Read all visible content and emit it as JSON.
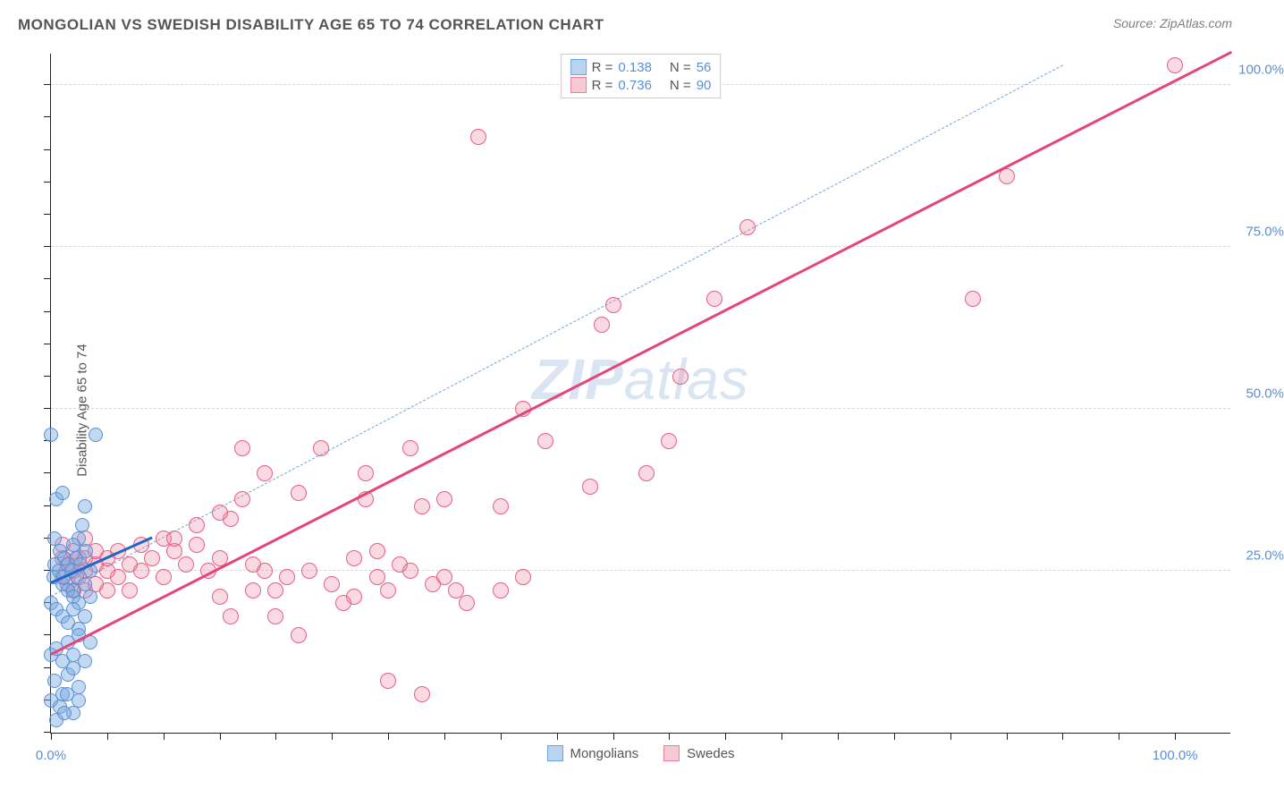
{
  "header": {
    "title": "MONGOLIAN VS SWEDISH DISABILITY AGE 65 TO 74 CORRELATION CHART",
    "source": "Source: ZipAtlas.com"
  },
  "axes": {
    "y_label": "Disability Age 65 to 74",
    "x_min": 0,
    "x_max": 105,
    "y_min": 0,
    "y_max": 105,
    "x_ticks": [
      0,
      5,
      10,
      15,
      20,
      25,
      30,
      35,
      40,
      45,
      50,
      55,
      60,
      65,
      70,
      75,
      80,
      85,
      90,
      95,
      100
    ],
    "y_ticks": [
      0,
      5,
      10,
      15,
      20,
      25,
      30,
      35,
      40,
      45,
      50,
      55,
      60,
      65,
      70,
      75,
      80,
      85,
      90,
      95,
      100
    ],
    "x_tick_labels": [
      {
        "v": 0,
        "t": "0.0%"
      },
      {
        "v": 100,
        "t": "100.0%"
      }
    ],
    "y_tick_labels": [
      {
        "v": 25,
        "t": "25.0%"
      },
      {
        "v": 50,
        "t": "50.0%"
      },
      {
        "v": 75,
        "t": "75.0%"
      },
      {
        "v": 100,
        "t": "100.0%"
      }
    ],
    "grid_y": [
      25,
      50,
      75,
      100
    ],
    "axis_label_color": "#5a8fd6",
    "grid_color": "#d8d8d8"
  },
  "watermark": {
    "prefix": "ZIP",
    "suffix": "atlas"
  },
  "legend_top": {
    "rows": [
      {
        "swatch_fill": "#b9d4f0",
        "swatch_border": "#6fa3dd",
        "r_label": "R =",
        "r_val": "0.138",
        "n_label": "N =",
        "n_val": "56"
      },
      {
        "swatch_fill": "#f6c9d4",
        "swatch_border": "#e87ea0",
        "r_label": "R =",
        "r_val": "0.736",
        "n_label": "N =",
        "n_val": "90"
      }
    ]
  },
  "legend_bottom": {
    "items": [
      {
        "swatch_fill": "#b9d4f0",
        "swatch_border": "#6fa3dd",
        "label": "Mongolians"
      },
      {
        "swatch_fill": "#f6c9d4",
        "swatch_border": "#e87ea0",
        "label": "Swedes"
      }
    ]
  },
  "series": {
    "mongolians": {
      "marker_radius": 8,
      "fill": "rgba(120,170,225,0.45)",
      "stroke": "#5a8fd6",
      "stroke_width": 1,
      "points": [
        [
          0,
          46
        ],
        [
          4,
          46
        ],
        [
          0.5,
          36
        ],
        [
          1,
          37
        ],
        [
          2,
          22
        ],
        [
          2.5,
          30
        ],
        [
          3,
          35
        ],
        [
          3.5,
          25
        ],
        [
          0.3,
          30
        ],
        [
          0.8,
          28
        ],
        [
          1.2,
          27
        ],
        [
          1.5,
          26
        ],
        [
          2,
          29
        ],
        [
          2.3,
          24
        ],
        [
          2.8,
          32
        ],
        [
          0.2,
          24
        ],
        [
          1,
          23
        ],
        [
          1.5,
          22
        ],
        [
          2,
          21
        ],
        [
          2.5,
          20
        ],
        [
          3,
          23
        ],
        [
          3.5,
          21
        ],
        [
          0,
          20
        ],
        [
          0.5,
          19
        ],
        [
          1,
          18
        ],
        [
          1.5,
          17
        ],
        [
          2,
          19
        ],
        [
          2.5,
          16
        ],
        [
          3,
          18
        ],
        [
          0.3,
          26
        ],
        [
          0.7,
          25
        ],
        [
          1.1,
          24
        ],
        [
          1.8,
          25
        ],
        [
          2.2,
          27
        ],
        [
          2.6,
          26
        ],
        [
          3.1,
          28
        ],
        [
          0,
          12
        ],
        [
          0.5,
          13
        ],
        [
          1,
          11
        ],
        [
          1.5,
          14
        ],
        [
          2,
          12
        ],
        [
          2.5,
          15
        ],
        [
          0.3,
          8
        ],
        [
          1,
          6
        ],
        [
          1.5,
          9
        ],
        [
          2,
          10
        ],
        [
          2.5,
          7
        ],
        [
          0,
          5
        ],
        [
          0.8,
          4
        ],
        [
          1.4,
          6
        ],
        [
          2,
          3
        ],
        [
          0.5,
          2
        ],
        [
          1.2,
          3
        ],
        [
          2.5,
          5
        ],
        [
          3,
          11
        ],
        [
          3.5,
          14
        ]
      ],
      "trend": {
        "x1": 0,
        "y1": 23,
        "x2": 9,
        "y2": 30,
        "color": "#2166c9",
        "width": 3
      }
    },
    "swedes": {
      "marker_radius": 9,
      "fill": "rgba(235,130,160,0.30)",
      "stroke": "#e75e88",
      "stroke_width": 1,
      "points": [
        [
          100,
          103
        ],
        [
          85,
          86
        ],
        [
          82,
          67
        ],
        [
          62,
          78
        ],
        [
          59,
          67
        ],
        [
          56,
          55
        ],
        [
          50,
          66
        ],
        [
          49,
          63
        ],
        [
          44,
          45
        ],
        [
          42,
          50
        ],
        [
          40,
          35
        ],
        [
          38,
          92
        ],
        [
          35,
          36
        ],
        [
          32,
          44
        ],
        [
          33,
          6
        ],
        [
          30,
          8
        ],
        [
          28,
          36
        ],
        [
          27,
          21
        ],
        [
          26,
          20
        ],
        [
          25,
          23
        ],
        [
          24,
          44
        ],
        [
          23,
          25
        ],
        [
          22,
          37
        ],
        [
          21,
          24
        ],
        [
          20,
          22
        ],
        [
          19,
          25
        ],
        [
          18,
          26
        ],
        [
          17,
          44
        ],
        [
          16,
          33
        ],
        [
          15,
          27
        ],
        [
          14,
          25
        ],
        [
          13,
          29
        ],
        [
          12,
          26
        ],
        [
          11,
          28
        ],
        [
          10,
          24
        ],
        [
          10,
          30
        ],
        [
          9,
          27
        ],
        [
          8,
          25
        ],
        [
          8,
          29
        ],
        [
          7,
          26
        ],
        [
          7,
          22
        ],
        [
          6,
          24
        ],
        [
          6,
          28
        ],
        [
          5,
          25
        ],
        [
          5,
          27
        ],
        [
          5,
          22
        ],
        [
          4,
          26
        ],
        [
          4,
          23
        ],
        [
          4,
          28
        ],
        [
          3,
          25
        ],
        [
          3,
          27
        ],
        [
          3,
          22
        ],
        [
          3,
          30
        ],
        [
          2.5,
          24
        ],
        [
          2.5,
          27
        ],
        [
          2,
          25
        ],
        [
          2,
          28
        ],
        [
          2,
          22
        ],
        [
          1.5,
          26
        ],
        [
          1.5,
          23
        ],
        [
          1,
          27
        ],
        [
          1,
          24
        ],
        [
          1,
          29
        ],
        [
          18,
          22
        ],
        [
          20,
          18
        ],
        [
          22,
          15
        ],
        [
          30,
          22
        ],
        [
          32,
          25
        ],
        [
          34,
          23
        ],
        [
          36,
          22
        ],
        [
          29,
          24
        ],
        [
          31,
          26
        ],
        [
          15,
          21
        ],
        [
          16,
          18
        ],
        [
          27,
          27
        ],
        [
          29,
          28
        ],
        [
          35,
          24
        ],
        [
          37,
          20
        ],
        [
          33,
          35
        ],
        [
          40,
          22
        ],
        [
          42,
          24
        ],
        [
          55,
          45
        ],
        [
          53,
          40
        ],
        [
          48,
          38
        ],
        [
          28,
          40
        ],
        [
          19,
          40
        ],
        [
          17,
          36
        ],
        [
          15,
          34
        ],
        [
          13,
          32
        ],
        [
          11,
          30
        ]
      ],
      "trend": {
        "x1": 0,
        "y1": 12,
        "x2": 105,
        "y2": 105,
        "color": "#e54577",
        "width": 2.5
      }
    }
  },
  "reference_line": {
    "x1": 0,
    "y1": 21,
    "x2": 90,
    "y2": 103,
    "color": "#6fa3dd",
    "dash": "6,5",
    "width": 1.5
  }
}
